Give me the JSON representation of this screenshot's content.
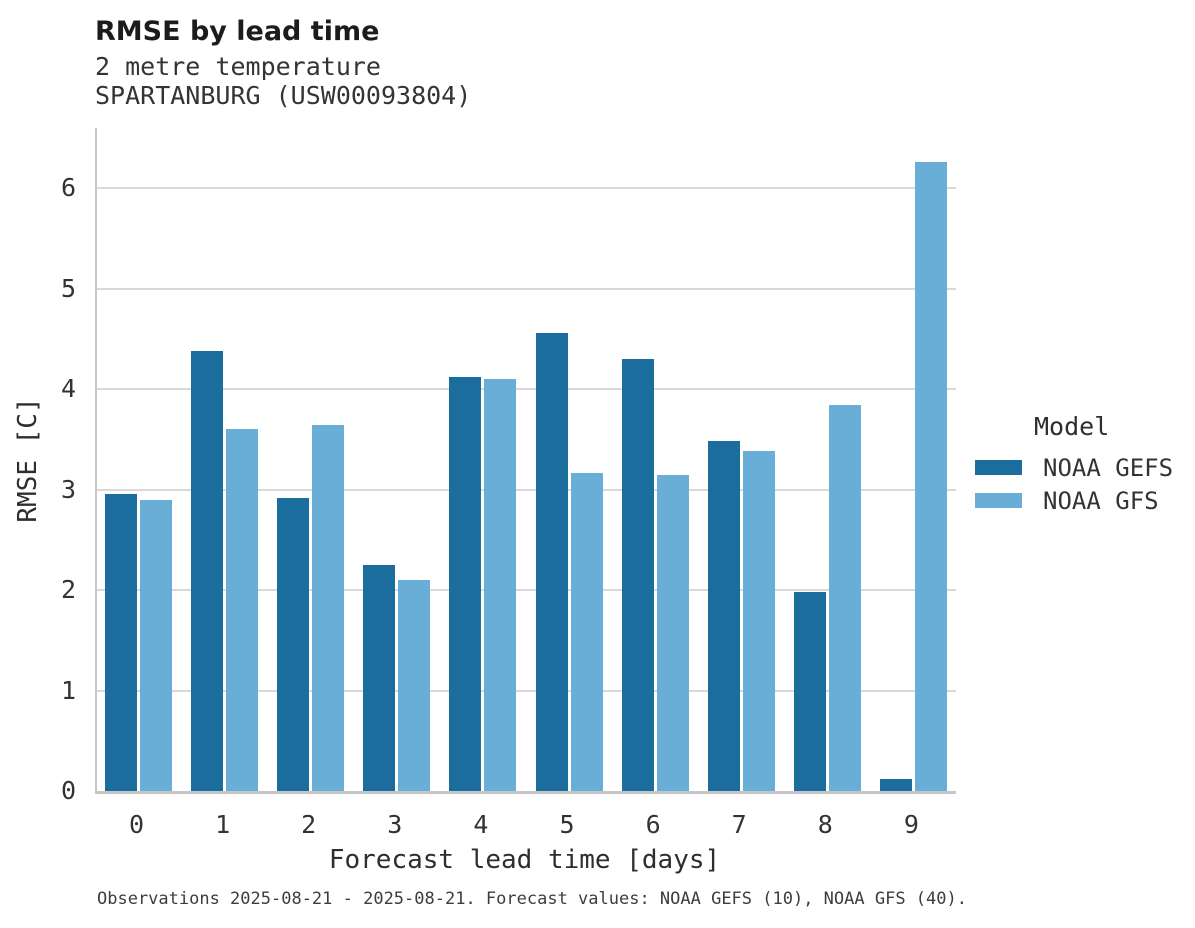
{
  "chart_data": {
    "type": "bar",
    "grouped": true,
    "title": "RMSE by lead time",
    "subtitle1": "2 metre temperature",
    "subtitle2": "SPARTANBURG (USW00093804)",
    "xlabel": "Forecast lead time [days]",
    "ylabel": "RMSE [C]",
    "categories": [
      "0",
      "1",
      "2",
      "3",
      "4",
      "5",
      "6",
      "7",
      "8",
      "9"
    ],
    "series": [
      {
        "name": "NOAA GEFS",
        "color": "#1b6d9d",
        "values": [
          2.96,
          4.38,
          2.92,
          2.25,
          4.12,
          4.56,
          4.3,
          3.48,
          1.98,
          0.12
        ]
      },
      {
        "name": "NOAA GFS",
        "color": "#68aed6",
        "values": [
          2.9,
          3.6,
          3.64,
          2.1,
          4.1,
          3.17,
          3.15,
          3.38,
          3.84,
          6.26
        ]
      }
    ],
    "ylim": [
      0,
      6.6
    ],
    "yticks": [
      0,
      1,
      2,
      3,
      4,
      5,
      6
    ],
    "grid": "horizontal",
    "legend_title": "Model",
    "legend_position": "right",
    "caption": "Observations 2025-08-21 - 2025-08-21. Forecast values: NOAA GEFS (10), NOAA GFS (40).",
    "colors": {
      "gridline": "#d9d9d9",
      "spine": "#c6c6c6",
      "bar_dark": "#1b6d9d",
      "bar_light": "#68aed6"
    }
  }
}
